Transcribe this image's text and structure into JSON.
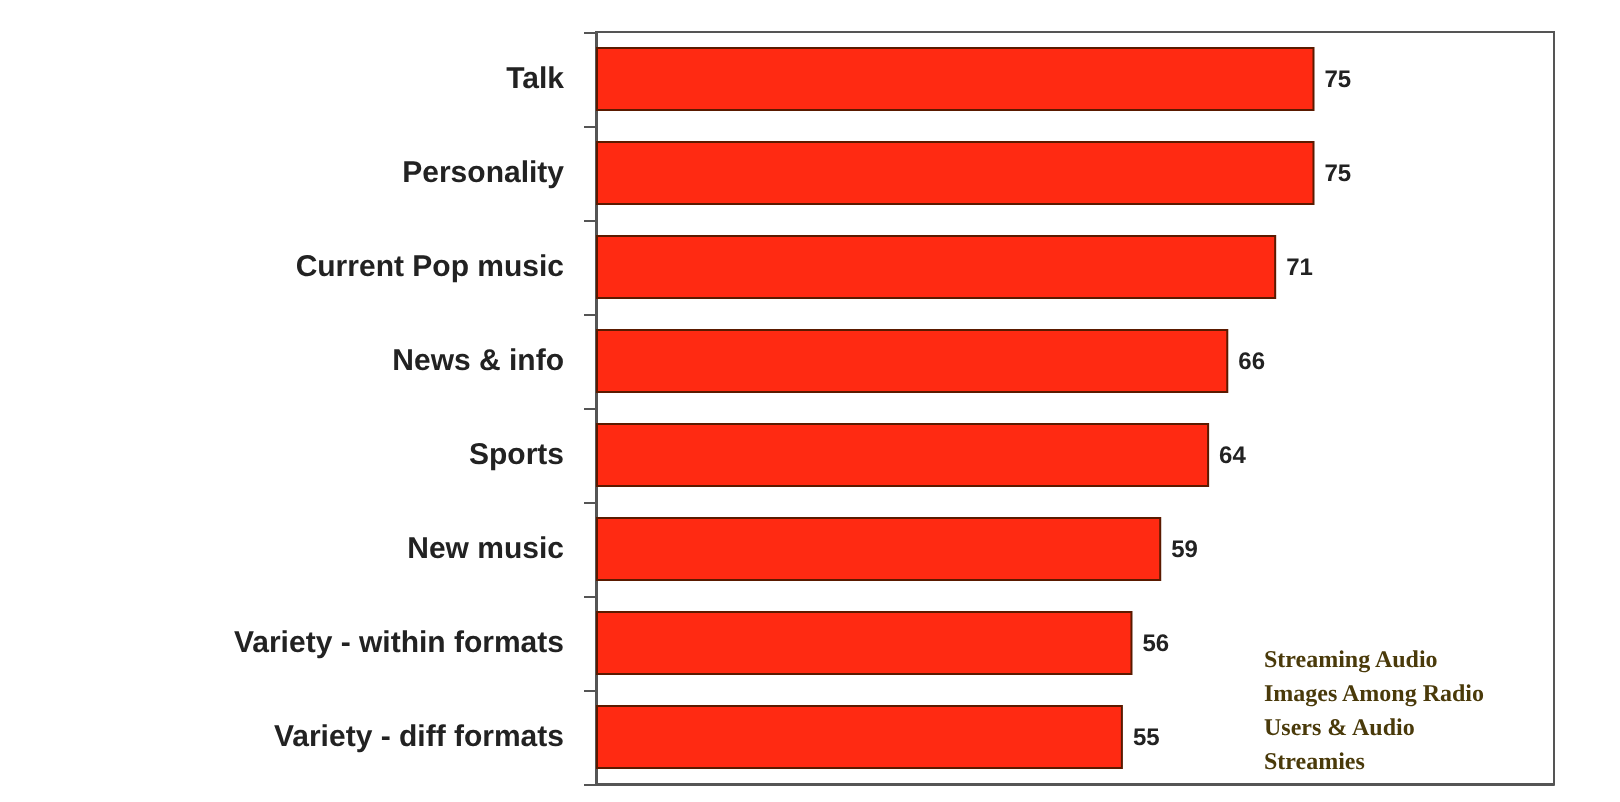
{
  "chart_data": {
    "type": "bar",
    "orientation": "horizontal",
    "categories": [
      "Talk",
      "Personality",
      "Current Pop music",
      "News & info",
      "Sports",
      "New music",
      "Variety - within formats",
      "Variety - diff formats"
    ],
    "values": [
      75,
      75,
      71,
      66,
      64,
      59,
      56,
      55
    ],
    "color": "#ff2a12",
    "xlim": [
      0,
      100
    ],
    "data_labels": true,
    "tick_labels": "y",
    "annotations": [
      "Streaming Audio Images Among Radio Users & Audio Streamies"
    ]
  }
}
